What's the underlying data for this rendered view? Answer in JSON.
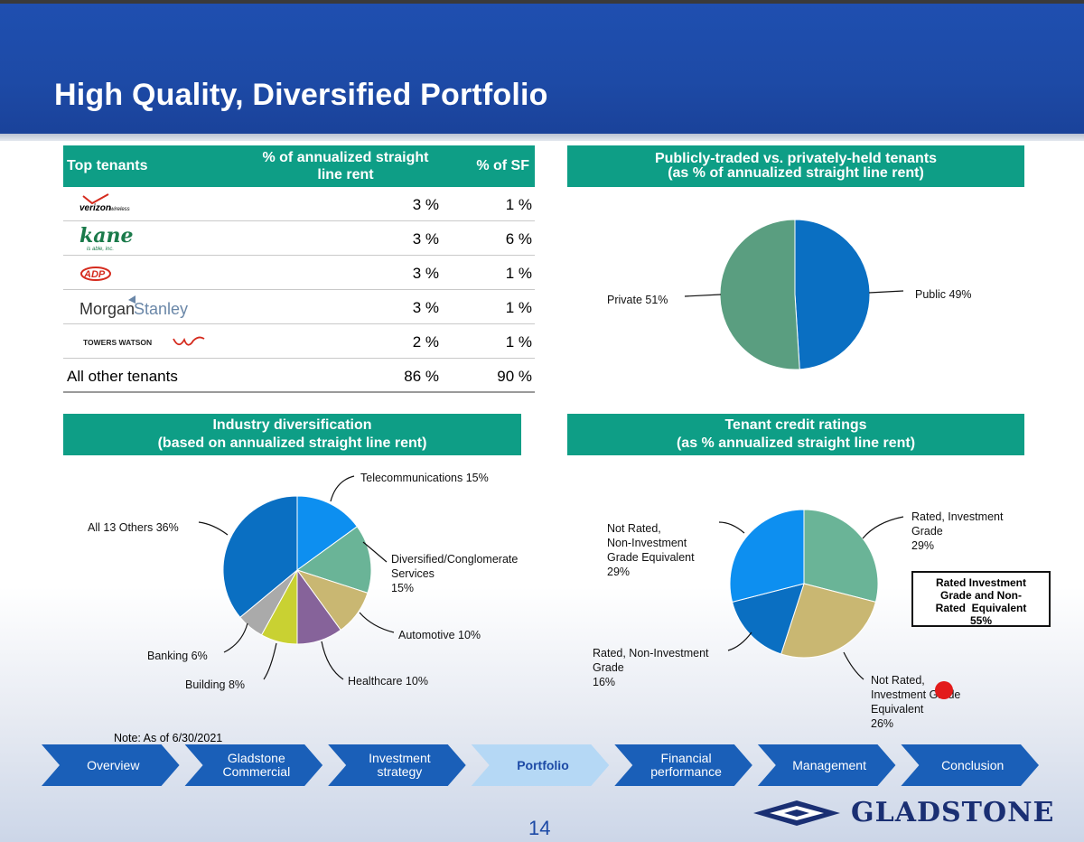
{
  "title": "High Quality, Diversified Portfolio",
  "tenants_table": {
    "headers": [
      "Top tenants",
      "% of annualized straight line rent",
      "% of SF"
    ],
    "rows": [
      {
        "tenant": "Verizon Wireless",
        "logo": "verizon-wireless-logo",
        "rent": "3 %",
        "sf": "1 %"
      },
      {
        "tenant": "Kane is able, inc.",
        "logo": "kane-logo",
        "rent": "3 %",
        "sf": "6 %"
      },
      {
        "tenant": "ADP",
        "logo": "adp-logo",
        "rent": "3 %",
        "sf": "1 %"
      },
      {
        "tenant": "Morgan Stanley",
        "logo": "morgan-stanley-logo",
        "rent": "3 %",
        "sf": "1 %"
      },
      {
        "tenant": "Towers Watson",
        "logo": "towers-watson-logo",
        "rent": "2 %",
        "sf": "1 %"
      },
      {
        "tenant": "All other tenants",
        "rent": "86 %",
        "sf": "90 %"
      }
    ],
    "logo_text": {
      "verizon": "verizon",
      "verizon_sub": "wireless",
      "kane": "kane",
      "kane_sub": "is able, inc.",
      "adp": "ADP",
      "morgan": "Morgan",
      "stanley": "Stanley",
      "towers": "TOWERS WATSON"
    }
  },
  "public_private": {
    "header_line1": "Publicly-traded vs. privately-held tenants",
    "header_line2": "(as % of annualized straight line rent)",
    "labels": {
      "public": "Public 49%",
      "private": "Private 51%"
    }
  },
  "industry": {
    "header_line1": "Industry diversification",
    "header_line2": "(based on annualized straight line rent)",
    "labels": {
      "telecom": "Telecommunications 15%",
      "diversified": "Diversified/Conglomerate\nServices\n15%",
      "automotive": "Automotive 10%",
      "healthcare": "Healthcare 10%",
      "building": "Building 8%",
      "banking": "Banking 6%",
      "others": "All 13 Others 36%"
    }
  },
  "credit": {
    "header_line1": "Tenant credit ratings",
    "header_line2": "(as % annualized straight line rent)",
    "labels": {
      "rated_ig": "Rated, Investment\nGrade\n29%",
      "nr_ig": "Not Rated,\nInvestment Grade\nEquivalent\n26%",
      "rated_nig": "Rated, Non-Investment\nGrade\n16%",
      "nr_nig": "Not Rated,\nNon-Investment\nGrade Equivalent\n29%"
    },
    "box": "Rated Investment\nGrade and Non-\nRated  Equivalent\n55%"
  },
  "chart_data": [
    {
      "type": "pie",
      "title": "Publicly-traded vs. privately-held tenants (as % of annualized straight line rent)",
      "categories": [
        "Public",
        "Private"
      ],
      "values": [
        49,
        51
      ],
      "colors": [
        "#0a6fc2",
        "#5a9e80"
      ]
    },
    {
      "type": "pie",
      "title": "Industry diversification (based on annualized straight line rent)",
      "categories": [
        "Telecommunications",
        "Diversified/Conglomerate Services",
        "Automotive",
        "Healthcare",
        "Building",
        "Banking",
        "All 13 Others"
      ],
      "values": [
        15,
        15,
        10,
        10,
        8,
        6,
        36
      ],
      "colors": [
        "#0d8ff0",
        "#6ab497",
        "#c9b772",
        "#86639a",
        "#c9d132",
        "#aaaaaa",
        "#0a6fc2"
      ]
    },
    {
      "type": "pie",
      "title": "Tenant credit ratings (as % annualized straight line rent)",
      "categories": [
        "Rated, Investment Grade",
        "Not Rated, Investment Grade Equivalent",
        "Rated, Non-Investment Grade",
        "Not Rated, Non-Investment Grade Equivalent"
      ],
      "values": [
        29,
        26,
        16,
        29
      ],
      "colors": [
        "#6ab497",
        "#c9b772",
        "#0a6fc2",
        "#0d8ff0"
      ]
    }
  ],
  "note": "Note: As of 6/30/2021",
  "nav": [
    "Overview",
    "Gladstone\nCommercial",
    "Investment\nstrategy",
    "Portfolio",
    "Financial\nperformance",
    "Management",
    "Conclusion"
  ],
  "nav_active": 3,
  "page_number": "14",
  "brand": "GLADSTONE"
}
